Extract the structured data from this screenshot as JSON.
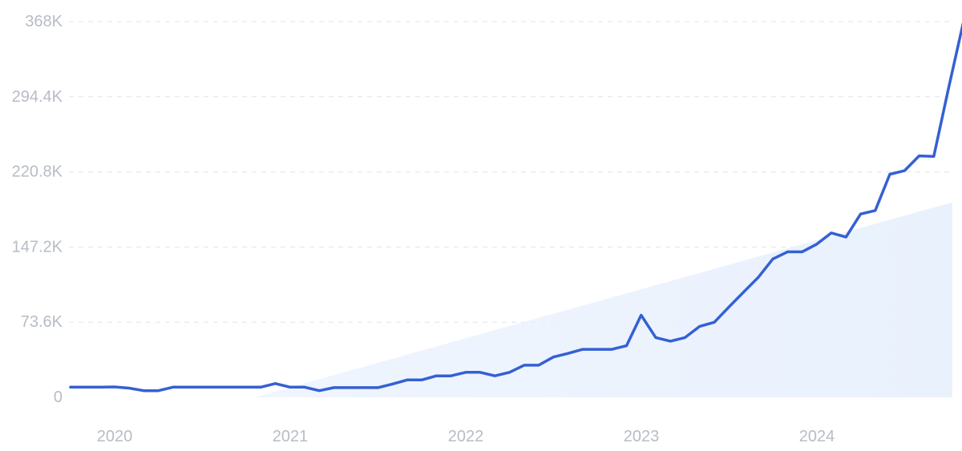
{
  "chart_data": {
    "type": "line",
    "title": "",
    "xlabel": "",
    "ylabel": "",
    "ylim": [
      0,
      368000
    ],
    "y_ticks": [
      {
        "value": 0,
        "label": "0"
      },
      {
        "value": 73600,
        "label": "73.6K"
      },
      {
        "value": 147200,
        "label": "147.2K"
      },
      {
        "value": 220800,
        "label": "220.8K"
      },
      {
        "value": 294400,
        "label": "294.4K"
      },
      {
        "value": 368000,
        "label": "368K"
      }
    ],
    "x_range": [
      "2019-09",
      "2024-08"
    ],
    "x_ticks": [
      {
        "date": "2020-01",
        "label": "2020"
      },
      {
        "date": "2021-01",
        "label": "2021"
      },
      {
        "date": "2022-01",
        "label": "2022"
      },
      {
        "date": "2023-01",
        "label": "2023"
      },
      {
        "date": "2024-01",
        "label": "2024"
      }
    ],
    "grid": true,
    "colors": {
      "line": "#3460d4",
      "trend_fill": "#e9f1fd",
      "grid": "#dfe3ea",
      "tick_text": "#b7bcc6"
    },
    "series": [
      {
        "role": "volume",
        "points": [
          [
            "2019-09",
            10000
          ],
          [
            "2019-10",
            10000
          ],
          [
            "2019-11",
            10000
          ],
          [
            "2019-12",
            10200
          ],
          [
            "2020-01",
            9000
          ],
          [
            "2020-02",
            6500
          ],
          [
            "2020-03",
            6500
          ],
          [
            "2020-04",
            10000
          ],
          [
            "2020-05",
            10000
          ],
          [
            "2020-06",
            10000
          ],
          [
            "2020-07",
            10000
          ],
          [
            "2020-08",
            10000
          ],
          [
            "2020-09",
            10000
          ],
          [
            "2020-10",
            10000
          ],
          [
            "2020-11",
            13500
          ],
          [
            "2020-12",
            10000
          ],
          [
            "2021-01",
            10000
          ],
          [
            "2021-02",
            6500
          ],
          [
            "2021-03",
            9500
          ],
          [
            "2021-04",
            9500
          ],
          [
            "2021-05",
            9500
          ],
          [
            "2021-06",
            9500
          ],
          [
            "2021-07",
            13000
          ],
          [
            "2021-08",
            17000
          ],
          [
            "2021-09",
            17000
          ],
          [
            "2021-10",
            21000
          ],
          [
            "2021-11",
            21000
          ],
          [
            "2021-12",
            24500
          ],
          [
            "2022-01",
            24500
          ],
          [
            "2022-02",
            21000
          ],
          [
            "2022-03",
            24500
          ],
          [
            "2022-04",
            31500
          ],
          [
            "2022-05",
            31500
          ],
          [
            "2022-06",
            39500
          ],
          [
            "2022-07",
            43000
          ],
          [
            "2022-08",
            47000
          ],
          [
            "2022-09",
            47000
          ],
          [
            "2022-10",
            47000
          ],
          [
            "2022-11",
            50500
          ],
          [
            "2022-12",
            80500
          ],
          [
            "2023-01",
            58500
          ],
          [
            "2023-02",
            55000
          ],
          [
            "2023-03",
            58500
          ],
          [
            "2023-04",
            69500
          ],
          [
            "2023-05",
            73500
          ],
          [
            "2023-06",
            88500
          ],
          [
            "2023-07",
            103000
          ],
          [
            "2023-08",
            117500
          ],
          [
            "2023-09",
            135500
          ],
          [
            "2023-10",
            142500
          ],
          [
            "2023-11",
            142500
          ],
          [
            "2023-12",
            150000
          ],
          [
            "2024-01",
            161000
          ],
          [
            "2024-02",
            157000
          ],
          [
            "2024-03",
            179500
          ],
          [
            "2024-04",
            183000
          ],
          [
            "2024-05",
            218500
          ],
          [
            "2024-06",
            222000
          ],
          [
            "2024-07",
            236500
          ],
          [
            "2024-08",
            236000
          ],
          [
            "2024-09",
            302000
          ],
          [
            "2024-10",
            366000
          ]
        ]
      },
      {
        "role": "trend",
        "points": [
          [
            "2020-10",
            0
          ],
          [
            "2024-10",
            191000
          ]
        ]
      }
    ]
  }
}
